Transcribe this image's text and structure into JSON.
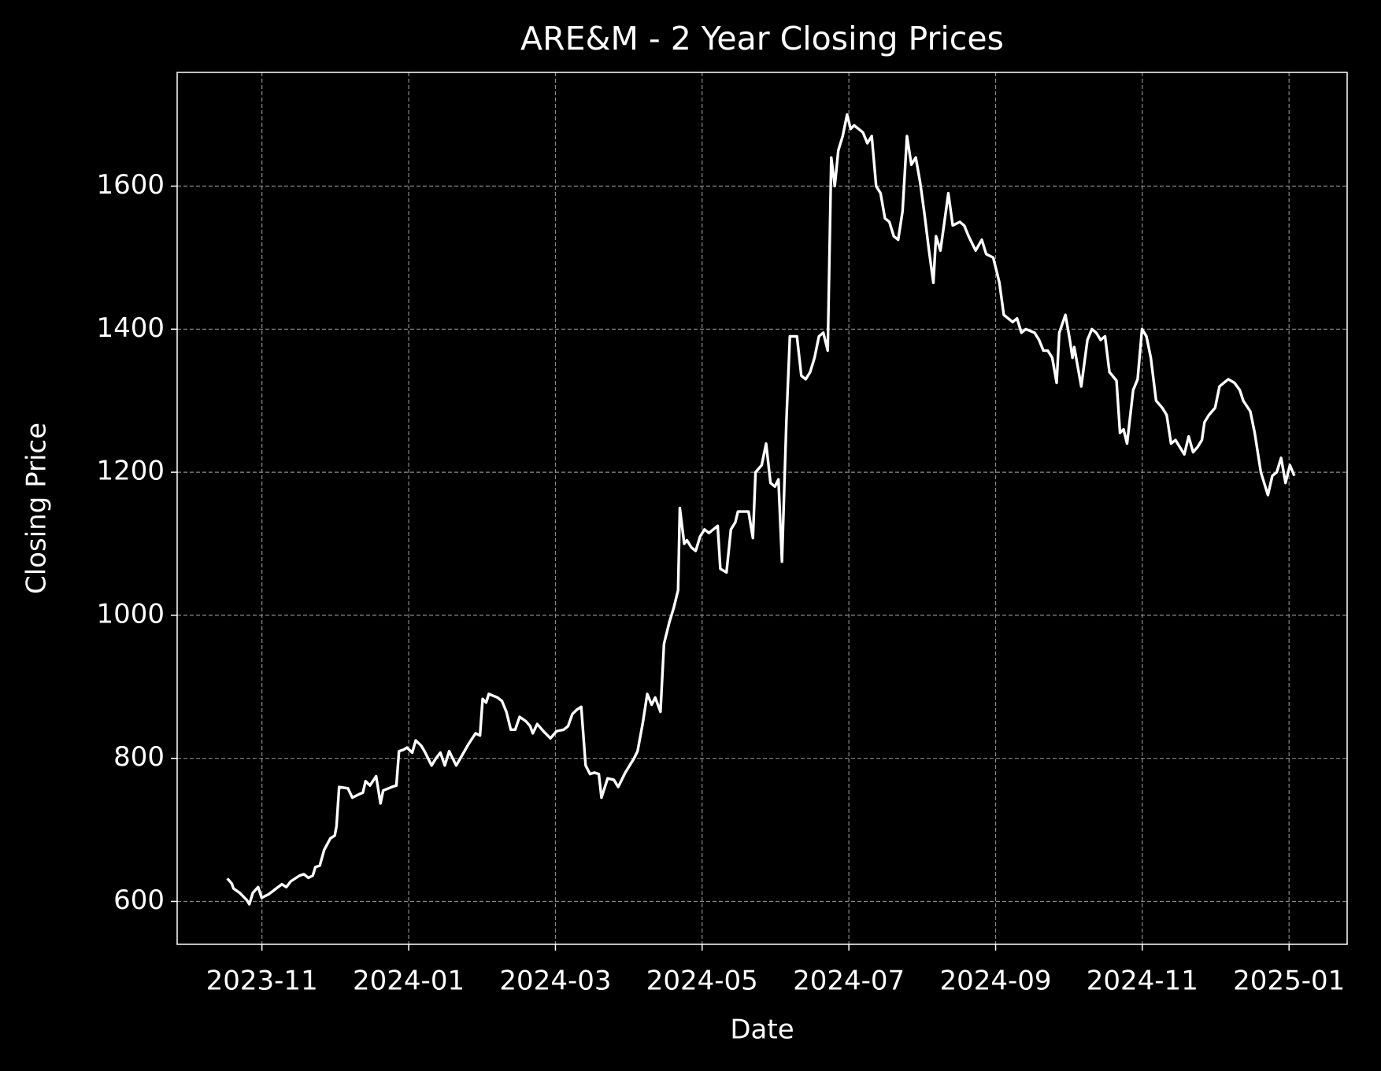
{
  "chart_data": {
    "type": "line",
    "title": "ARE&M - 2 Year Closing Prices",
    "x_label": "Date",
    "y_label": "Closing Price",
    "grid": true,
    "xlim": [
      2023.737,
      2025.066
    ],
    "xticks": [
      {
        "value": 2023.8333,
        "label": "2023-11"
      },
      {
        "value": 2024.0,
        "label": "2024-01"
      },
      {
        "value": 2024.1667,
        "label": "2024-03"
      },
      {
        "value": 2024.3333,
        "label": "2024-05"
      },
      {
        "value": 2024.5,
        "label": "2024-07"
      },
      {
        "value": 2024.6667,
        "label": "2024-09"
      },
      {
        "value": 2024.8333,
        "label": "2024-11"
      },
      {
        "value": 2025.0,
        "label": "2025-01"
      }
    ],
    "ylim": [
      540,
      1759
    ],
    "yticks": [
      600,
      800,
      1000,
      1200,
      1400,
      1600
    ],
    "x": [
      2023.794,
      2023.799,
      2023.801,
      2023.808,
      2023.816,
      2023.819,
      2023.823,
      2023.829,
      2023.833,
      2023.841,
      2023.856,
      2023.861,
      2023.866,
      2023.876,
      2023.881,
      2023.886,
      2023.891,
      2023.894,
      2023.899,
      2023.904,
      2023.911,
      2023.916,
      2023.918,
      2023.921,
      2023.931,
      2023.936,
      2023.944,
      2023.948,
      2023.951,
      2023.956,
      2023.963,
      2023.968,
      2023.971,
      2023.981,
      2023.986,
      2023.989,
      2023.994,
      2023.998,
      2024.004,
      2024.008,
      2024.014,
      2024.018,
      2024.026,
      2024.031,
      2024.036,
      2024.041,
      2024.046,
      2024.054,
      2024.061,
      2024.068,
      2024.076,
      2024.081,
      2024.084,
      2024.088,
      2024.091,
      2024.101,
      2024.106,
      2024.111,
      2024.116,
      2024.121,
      2024.126,
      2024.133,
      2024.138,
      2024.141,
      2024.146,
      2024.153,
      2024.161,
      2024.168,
      2024.176,
      2024.181,
      2024.186,
      2024.191,
      2024.196,
      2024.201,
      2024.206,
      2024.211,
      2024.216,
      2024.219,
      2024.226,
      2024.233,
      2024.238,
      2024.242,
      2024.246,
      2024.251,
      2024.256,
      2024.26,
      2024.266,
      2024.271,
      2024.276,
      2024.28,
      2024.286,
      2024.29,
      2024.296,
      2024.301,
      2024.306,
      2024.308,
      2024.313,
      2024.316,
      2024.321,
      2024.326,
      2024.331,
      2024.336,
      2024.341,
      2024.346,
      2024.351,
      2024.354,
      2024.361,
      2024.366,
      2024.371,
      2024.374,
      2024.386,
      2024.391,
      2024.394,
      2024.401,
      2024.406,
      2024.411,
      2024.416,
      2024.42,
      2024.424,
      2024.429,
      2024.433,
      2024.441,
      2024.446,
      2024.451,
      2024.456,
      2024.461,
      2024.466,
      2024.471,
      2024.476,
      2024.48,
      2024.484,
      2024.488,
      2024.493,
      2024.498,
      2024.502,
      2024.506,
      2024.511,
      2024.516,
      2024.521,
      2024.526,
      2024.531,
      2024.536,
      2024.541,
      2024.546,
      2024.551,
      2024.556,
      2024.561,
      2024.566,
      2024.571,
      2024.576,
      2024.581,
      2024.586,
      2024.591,
      2024.596,
      2024.599,
      2024.604,
      2024.608,
      2024.613,
      2024.618,
      2024.626,
      2024.631,
      2024.636,
      2024.644,
      2024.651,
      2024.656,
      2024.664,
      2024.671,
      2024.676,
      2024.686,
      2024.691,
      2024.696,
      2024.701,
      2024.711,
      2024.716,
      2024.721,
      2024.726,
      2024.731,
      2024.736,
      2024.739,
      2024.746,
      2024.751,
      2024.754,
      2024.756,
      2024.764,
      2024.771,
      2024.776,
      2024.781,
      2024.786,
      2024.791,
      2024.796,
      2024.804,
      2024.808,
      2024.812,
      2024.816,
      2024.823,
      2024.828,
      2024.833,
      2024.838,
      2024.843,
      2024.849,
      2024.856,
      2024.861,
      2024.866,
      2024.871,
      2024.876,
      2024.881,
      2024.886,
      2024.891,
      2024.896,
      2024.901,
      2024.904,
      2024.909,
      2024.916,
      2024.921,
      2024.926,
      2024.931,
      2024.938,
      2024.944,
      2024.948,
      2024.956,
      2024.961,
      2024.968,
      2024.976,
      2024.981,
      2024.986,
      2024.991,
      2024.996,
      2025.001,
      2025.006
    ],
    "series": [
      {
        "color": "#ffffff",
        "values": [
          632,
          625,
          618,
          612,
          602,
          596,
          612,
          620,
          605,
          610,
          624,
          620,
          628,
          636,
          638,
          633,
          636,
          648,
          650,
          672,
          688,
          692,
          705,
          760,
          758,
          745,
          750,
          752,
          768,
          762,
          775,
          737,
          755,
          760,
          762,
          810,
          812,
          815,
          808,
          825,
          818,
          810,
          790,
          800,
          808,
          790,
          810,
          790,
          805,
          820,
          835,
          832,
          883,
          878,
          890,
          885,
          880,
          865,
          840,
          840,
          858,
          852,
          845,
          835,
          848,
          838,
          828,
          838,
          840,
          845,
          862,
          868,
          872,
          790,
          778,
          780,
          778,
          745,
          772,
          770,
          760,
          770,
          780,
          790,
          800,
          810,
          850,
          890,
          875,
          885,
          865,
          960,
          990,
          1010,
          1035,
          1150,
          1100,
          1105,
          1095,
          1090,
          1110,
          1120,
          1115,
          1120,
          1125,
          1065,
          1060,
          1120,
          1130,
          1145,
          1145,
          1108,
          1200,
          1210,
          1240,
          1185,
          1180,
          1190,
          1075,
          1270,
          1390,
          1390,
          1335,
          1330,
          1340,
          1360,
          1390,
          1395,
          1370,
          1640,
          1600,
          1650,
          1670,
          1700,
          1680,
          1685,
          1680,
          1675,
          1660,
          1670,
          1600,
          1590,
          1555,
          1550,
          1530,
          1525,
          1565,
          1670,
          1630,
          1640,
          1605,
          1560,
          1510,
          1465,
          1530,
          1510,
          1545,
          1590,
          1545,
          1550,
          1545,
          1530,
          1510,
          1525,
          1505,
          1500,
          1465,
          1420,
          1410,
          1415,
          1395,
          1400,
          1395,
          1385,
          1370,
          1370,
          1360,
          1325,
          1395,
          1420,
          1385,
          1360,
          1375,
          1320,
          1385,
          1400,
          1395,
          1385,
          1390,
          1340,
          1328,
          1255,
          1260,
          1240,
          1315,
          1330,
          1400,
          1390,
          1360,
          1300,
          1290,
          1280,
          1240,
          1245,
          1235,
          1225,
          1250,
          1228,
          1235,
          1245,
          1270,
          1280,
          1290,
          1320,
          1325,
          1330,
          1325,
          1315,
          1300,
          1285,
          1255,
          1200,
          1168,
          1195,
          1200,
          1220,
          1185,
          1210,
          1195
        ]
      }
    ]
  }
}
